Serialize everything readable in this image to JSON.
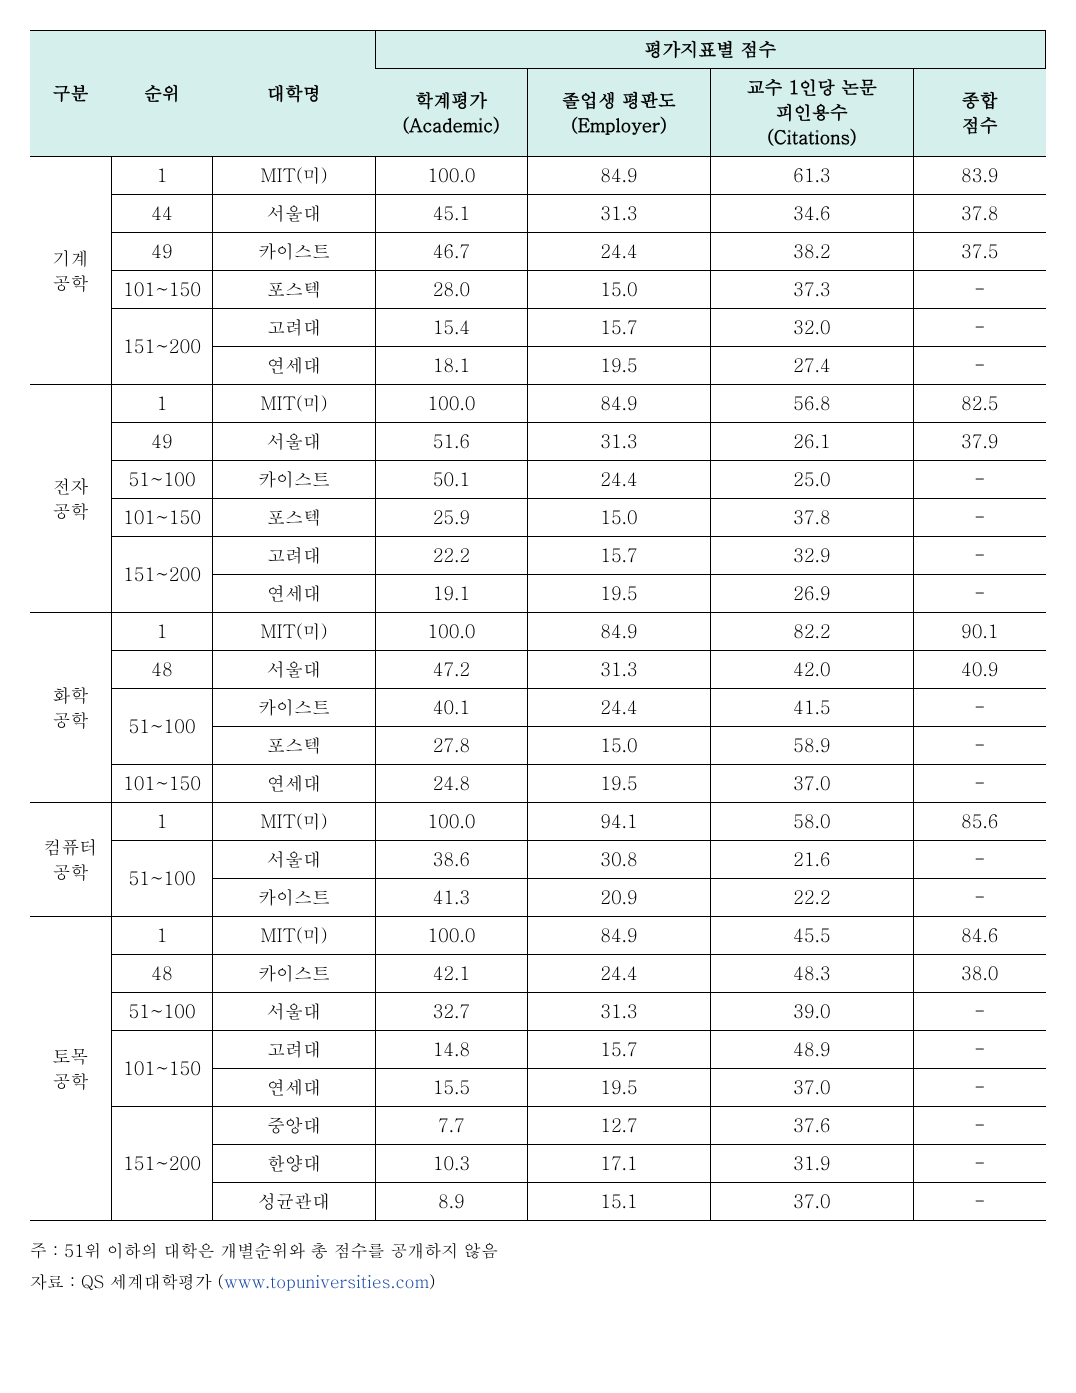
{
  "header": {
    "col1": "구분",
    "col2": "순위",
    "col3": "대학명",
    "super": "평가지표별 점수",
    "col4_line1": "학계평가",
    "col4_line2": "(Academic)",
    "col5_line1": "졸업생 평판도",
    "col5_line2": "(Employer)",
    "col6_line1": "교수 1인당 논문",
    "col6_line2": "피인용수",
    "col6_line3": "(Citations)",
    "col7_line1": "종합",
    "col7_line2": "점수"
  },
  "groups": [
    {
      "label_line1": "기계",
      "label_line2": "공학",
      "rows": [
        {
          "rank": "1",
          "uni": "MIT(미)",
          "academic": "100.0",
          "employer": "84.9",
          "citations": "61.3",
          "total": "83.9"
        },
        {
          "rank": "44",
          "uni": "서울대",
          "academic": "45.1",
          "employer": "31.3",
          "citations": "34.6",
          "total": "37.8"
        },
        {
          "rank": "49",
          "uni": "카이스트",
          "academic": "46.7",
          "employer": "24.4",
          "citations": "38.2",
          "total": "37.5"
        },
        {
          "rank": "101~150",
          "uni": "포스텍",
          "academic": "28.0",
          "employer": "15.0",
          "citations": "37.3",
          "total": "-"
        },
        {
          "rank": "151~200",
          "rank_rowspan": 2,
          "uni": "고려대",
          "academic": "15.4",
          "employer": "15.7",
          "citations": "32.0",
          "total": "-"
        },
        {
          "uni": "연세대",
          "academic": "18.1",
          "employer": "19.5",
          "citations": "27.4",
          "total": "-"
        }
      ]
    },
    {
      "label_line1": "전자",
      "label_line2": "공학",
      "rows": [
        {
          "rank": "1",
          "uni": "MIT(미)",
          "academic": "100.0",
          "employer": "84.9",
          "citations": "56.8",
          "total": "82.5"
        },
        {
          "rank": "49",
          "uni": "서울대",
          "academic": "51.6",
          "employer": "31.3",
          "citations": "26.1",
          "total": "37.9"
        },
        {
          "rank": "51~100",
          "uni": "카이스트",
          "academic": "50.1",
          "employer": "24.4",
          "citations": "25.0",
          "total": "-"
        },
        {
          "rank": "101~150",
          "uni": "포스텍",
          "academic": "25.9",
          "employer": "15.0",
          "citations": "37.8",
          "total": "-"
        },
        {
          "rank": "151~200",
          "rank_rowspan": 2,
          "uni": "고려대",
          "academic": "22.2",
          "employer": "15.7",
          "citations": "32.9",
          "total": "-"
        },
        {
          "uni": "연세대",
          "academic": "19.1",
          "employer": "19.5",
          "citations": "26.9",
          "total": "-"
        }
      ]
    },
    {
      "label_line1": "화학",
      "label_line2": "공학",
      "rows": [
        {
          "rank": "1",
          "uni": "MIT(미)",
          "academic": "100.0",
          "employer": "84.9",
          "citations": "82.2",
          "total": "90.1"
        },
        {
          "rank": "48",
          "uni": "서울대",
          "academic": "47.2",
          "employer": "31.3",
          "citations": "42.0",
          "total": "40.9"
        },
        {
          "rank": "51~100",
          "rank_rowspan": 2,
          "uni": "카이스트",
          "academic": "40.1",
          "employer": "24.4",
          "citations": "41.5",
          "total": "-"
        },
        {
          "uni": "포스텍",
          "academic": "27.8",
          "employer": "15.0",
          "citations": "58.9",
          "total": "-"
        },
        {
          "rank": "101~150",
          "uni": "연세대",
          "academic": "24.8",
          "employer": "19.5",
          "citations": "37.0",
          "total": "-"
        }
      ]
    },
    {
      "label_line1": "컴퓨터",
      "label_line2": "공학",
      "rows": [
        {
          "rank": "1",
          "uni": "MIT(미)",
          "academic": "100.0",
          "employer": "94.1",
          "citations": "58.0",
          "total": "85.6"
        },
        {
          "rank": "51~100",
          "rank_rowspan": 2,
          "uni": "서울대",
          "academic": "38.6",
          "employer": "30.8",
          "citations": "21.6",
          "total": "-"
        },
        {
          "uni": "카이스트",
          "academic": "41.3",
          "employer": "20.9",
          "citations": "22.2",
          "total": "-"
        }
      ]
    },
    {
      "label_line1": "토목",
      "label_line2": "공학",
      "rows": [
        {
          "rank": "1",
          "uni": "MIT(미)",
          "academic": "100.0",
          "employer": "84.9",
          "citations": "45.5",
          "total": "84.6"
        },
        {
          "rank": "48",
          "uni": "카이스트",
          "academic": "42.1",
          "employer": "24.4",
          "citations": "48.3",
          "total": "38.0"
        },
        {
          "rank": "51~100",
          "uni": "서울대",
          "academic": "32.7",
          "employer": "31.3",
          "citations": "39.0",
          "total": "-"
        },
        {
          "rank": "101~150",
          "rank_rowspan": 2,
          "uni": "고려대",
          "academic": "14.8",
          "employer": "15.7",
          "citations": "48.9",
          "total": "-"
        },
        {
          "uni": "연세대",
          "academic": "15.5",
          "employer": "19.5",
          "citations": "37.0",
          "total": "-"
        },
        {
          "rank": "151~200",
          "rank_rowspan": 3,
          "uni": "중앙대",
          "academic": "7.7",
          "employer": "12.7",
          "citations": "37.6",
          "total": "-"
        },
        {
          "uni": "한양대",
          "academic": "10.3",
          "employer": "17.1",
          "citations": "31.9",
          "total": "-"
        },
        {
          "uni": "성균관대",
          "academic": "8.9",
          "employer": "15.1",
          "citations": "37.0",
          "total": "-"
        }
      ]
    }
  ],
  "footnote_note": "주 : 51위 이하의 대학은 개별순위와 총 점수를 공개하지 않음",
  "footnote_src_prefix": "자료 : QS 세계대학평가 (",
  "footnote_src_link": "www.topuniversities.com",
  "footnote_src_suffix": ")"
}
